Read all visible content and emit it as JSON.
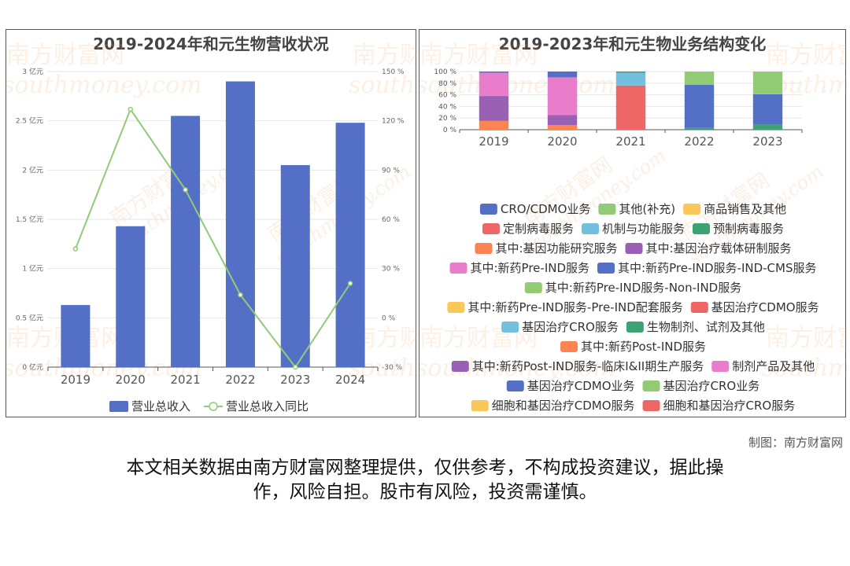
{
  "chart_data": [
    {
      "type": "bar",
      "title": "2019-2024年和元生物营收状况",
      "categories": [
        "2019",
        "2020",
        "2021",
        "2022",
        "2023",
        "2024"
      ],
      "series": [
        {
          "name": "营业总收入",
          "kind": "bar",
          "axis": "left",
          "unit": "亿元",
          "color": "#5470c6",
          "values": [
            0.63,
            1.43,
            2.55,
            2.9,
            2.05,
            2.48
          ]
        },
        {
          "name": "营业总收入同比",
          "kind": "line",
          "axis": "right",
          "unit": "%",
          "color": "#91cc75",
          "values": [
            42,
            127,
            78,
            14,
            -30,
            21
          ]
        }
      ],
      "y_left": {
        "min": 0,
        "max": 3,
        "ticks": [
          0,
          0.5,
          1,
          1.5,
          2,
          2.5,
          3
        ],
        "tick_labels": [
          "0 亿元",
          "0.5 亿元",
          "1 亿元",
          "1.5 亿元",
          "2 亿元",
          "2.5 亿元",
          "3 亿元"
        ]
      },
      "y_right": {
        "min": -30,
        "max": 150,
        "ticks": [
          -30,
          0,
          30,
          60,
          90,
          120,
          150
        ],
        "tick_labels": [
          "-30 %",
          "0 %",
          "30 %",
          "60 %",
          "90 %",
          "120 %",
          "150 %"
        ]
      },
      "grid": true,
      "legend": "bottom"
    },
    {
      "type": "bar",
      "stacked": true,
      "title": "2019-2023年和元生物业务结构变化",
      "categories": [
        "2019",
        "2020",
        "2021",
        "2022",
        "2023"
      ],
      "y": {
        "min": 0,
        "max": 100,
        "ticks": [
          0,
          20,
          40,
          60,
          80,
          100
        ],
        "tick_labels": [
          "0 %",
          "20 %",
          "40 %",
          "60 %",
          "80 %",
          "100 %"
        ]
      },
      "stacks": [
        [
          {
            "name": "其中:基因功能研究服务",
            "value": 15,
            "color": "#fc8452"
          },
          {
            "name": "其中:基因治疗载体研制服务",
            "value": 43,
            "color": "#9a60b4"
          },
          {
            "name": "其中:新药Pre-IND服务",
            "value": 40,
            "color": "#ea7ccc"
          },
          {
            "name": "CRO/CDMO业务",
            "value": 2,
            "color": "#5470c6"
          }
        ],
        [
          {
            "name": "其中:基因功能研究服务",
            "value": 8,
            "color": "#fc8452"
          },
          {
            "name": "其中:基因治疗载体研制服务",
            "value": 17,
            "color": "#9a60b4"
          },
          {
            "name": "其中:新药Pre-IND服务",
            "value": 65,
            "color": "#ea7ccc"
          },
          {
            "name": "CRO/CDMO业务",
            "value": 10,
            "color": "#5470c6"
          }
        ],
        [
          {
            "name": "定制病毒服务",
            "value": 76,
            "color": "#ee6666"
          },
          {
            "name": "机制与功能服务",
            "value": 22,
            "color": "#73c0de"
          },
          {
            "name": "预制病毒服务",
            "value": 2,
            "color": "#3ba272"
          }
        ],
        [
          {
            "name": "生物制剂、试剂及其他",
            "value": 3,
            "color": "#3ba272"
          },
          {
            "name": "CRO/CDMO业务",
            "value": 74,
            "color": "#5470c6"
          },
          {
            "name": "其他(补充)",
            "value": 23,
            "color": "#91cc75"
          }
        ],
        [
          {
            "name": "生物制剂、试剂及其他",
            "value": 9,
            "color": "#3ba272"
          },
          {
            "name": "CRO/CDMO业务",
            "value": 52,
            "color": "#5470c6"
          },
          {
            "name": "其他(补充)",
            "value": 39,
            "color": "#91cc75"
          }
        ]
      ],
      "legend_entries": [
        {
          "name": "CRO/CDMO业务",
          "color": "#5470c6"
        },
        {
          "name": "其他(补充)",
          "color": "#91cc75"
        },
        {
          "name": "商品销售及其他",
          "color": "#fac858"
        },
        {
          "name": "定制病毒服务",
          "color": "#ee6666"
        },
        {
          "name": "机制与功能服务",
          "color": "#73c0de"
        },
        {
          "name": "预制病毒服务",
          "color": "#3ba272"
        },
        {
          "name": "其中:基因功能研究服务",
          "color": "#fc8452"
        },
        {
          "name": "其中:基因治疗载体研制服务",
          "color": "#9a60b4"
        },
        {
          "name": "其中:新药Pre-IND服务",
          "color": "#ea7ccc"
        },
        {
          "name": "其中:新药Pre-IND服务-IND-CMS服务",
          "color": "#5470c6"
        },
        {
          "name": "其中:新药Pre-IND服务-Non-IND服务",
          "color": "#91cc75"
        },
        {
          "name": "其中:新药Pre-IND服务-Pre-IND配套服务",
          "color": "#fac858"
        },
        {
          "name": "基因治疗CDMO服务",
          "color": "#ee6666"
        },
        {
          "name": "基因治疗CRO服务",
          "color": "#73c0de"
        },
        {
          "name": "生物制剂、试剂及其他",
          "color": "#3ba272"
        },
        {
          "name": "其中:新药Post-IND服务",
          "color": "#fc8452"
        },
        {
          "name": "其中:新药Post-IND服务-临床I&II期生产服务",
          "color": "#9a60b4"
        },
        {
          "name": "制剂产品及其他",
          "color": "#ea7ccc"
        },
        {
          "name": "基因治疗CDMO业务",
          "color": "#5470c6"
        },
        {
          "name": "基因治疗CRO业务",
          "color": "#91cc75"
        },
        {
          "name": "细胞和基因治疗CDMO服务",
          "color": "#fac858"
        },
        {
          "name": "细胞和基因治疗CRO服务",
          "color": "#ee6666"
        }
      ],
      "grid": true,
      "legend": "bottom"
    }
  ],
  "watermark": {
    "brand": "南方财富网",
    "latin": "southmoney.com"
  },
  "footer": {
    "credit": "制图：南方财富网",
    "disclaimer_line1": "本文相关数据由南方财富网整理提供，仅供参考，不构成投资建议，据此操",
    "disclaimer_line2": "作，风险自担。股市有风险，投资需谨慎。"
  }
}
